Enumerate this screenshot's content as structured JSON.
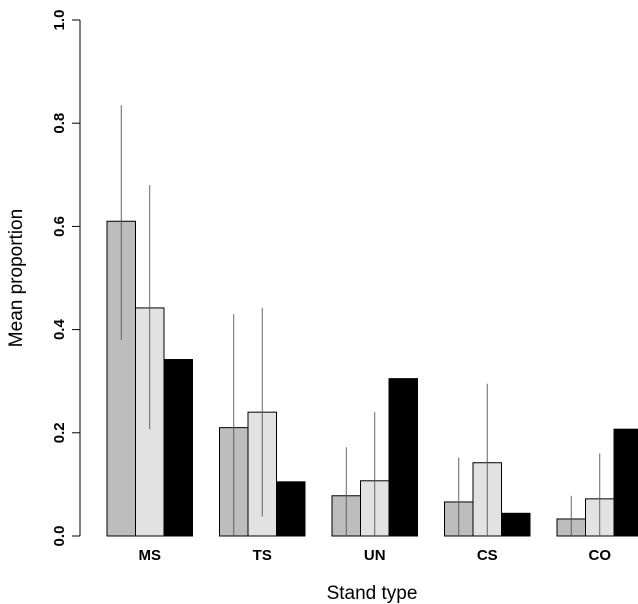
{
  "chart_data": {
    "type": "bar",
    "title": "",
    "xlabel": "Stand type",
    "ylabel": "Mean proportion",
    "ylim": [
      0,
      1
    ],
    "yticks": [
      "0.0",
      "0.2",
      "0.4",
      "0.6",
      "0.8",
      "1.0"
    ],
    "categories": [
      "MS",
      "TS",
      "UN",
      "CS",
      "CO"
    ],
    "grid": false,
    "legend": "none",
    "series": [
      {
        "color": "#bdbdbd",
        "values": [
          0.61,
          0.21,
          0.078,
          0.066,
          0.033
        ],
        "error_low": [
          0.38,
          0.0,
          0.0,
          0.0,
          0.0
        ],
        "error_high": [
          0.835,
          0.43,
          0.172,
          0.152,
          0.078
        ]
      },
      {
        "color": "#e2e2e2",
        "values": [
          0.442,
          0.24,
          0.107,
          0.142,
          0.072
        ],
        "error_low": [
          0.207,
          0.038,
          0.0,
          0.0,
          0.0
        ],
        "error_high": [
          0.68,
          0.442,
          0.24,
          0.295,
          0.16
        ]
      },
      {
        "color": "#000000",
        "values": [
          0.342,
          0.105,
          0.305,
          0.044,
          0.207
        ]
      }
    ]
  }
}
